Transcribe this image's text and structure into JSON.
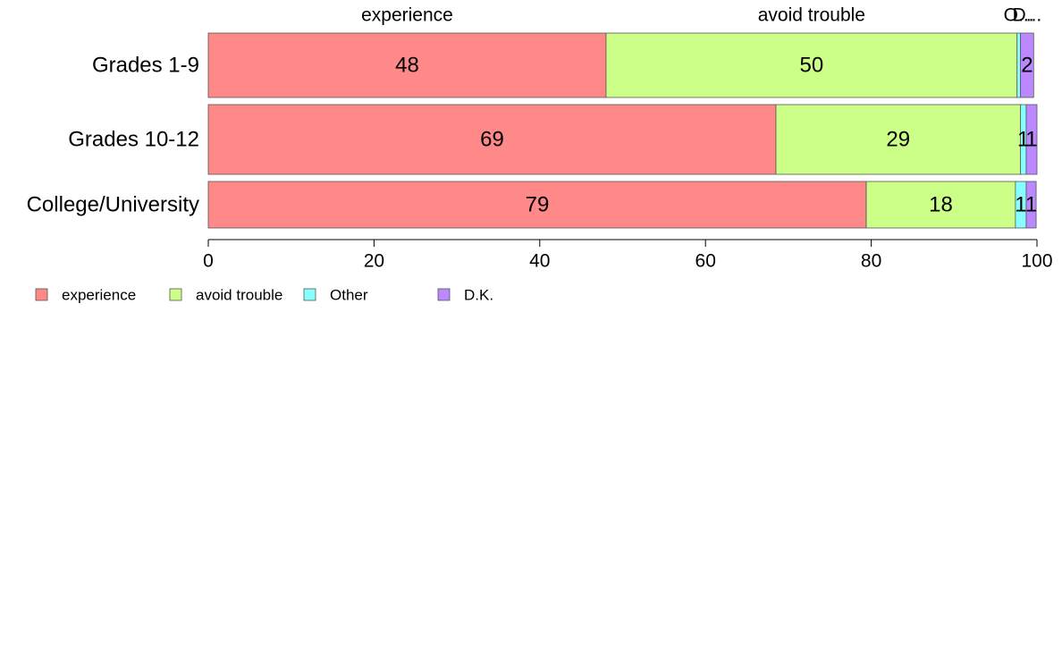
{
  "chart_data": {
    "type": "bar",
    "orientation": "horizontal",
    "stacked": true,
    "categories": [
      "Grades 1-9",
      "Grades 10-12",
      "College/University"
    ],
    "series": [
      {
        "name": "experience",
        "color": "#ff8888",
        "values": [
          48,
          68.5,
          79.4
        ],
        "labels": [
          "48",
          "69",
          "79"
        ]
      },
      {
        "name": "avoid trouble",
        "color": "#ccff88",
        "values": [
          49.6,
          29.5,
          18
        ],
        "labels": [
          "50",
          "29",
          "18"
        ]
      },
      {
        "name": "Other",
        "color": "#88ffff",
        "values": [
          0.4,
          0.7,
          1.3
        ],
        "labels": [
          "",
          "1",
          "1"
        ]
      },
      {
        "name": "D.K.",
        "color": "#bb88ff",
        "values": [
          1.6,
          1.3,
          1.2
        ],
        "labels": [
          "2",
          "1",
          "1"
        ]
      }
    ],
    "top_labels": [
      "experience",
      "avoid trouble",
      "O...",
      "D..."
    ],
    "xlim": [
      0,
      100
    ],
    "xticks": [
      0,
      20,
      40,
      60,
      80,
      100
    ],
    "grid": false,
    "legend": {
      "position": "bottom-left",
      "entries": [
        "experience",
        "avoid trouble",
        "Other",
        "D.K."
      ]
    }
  }
}
